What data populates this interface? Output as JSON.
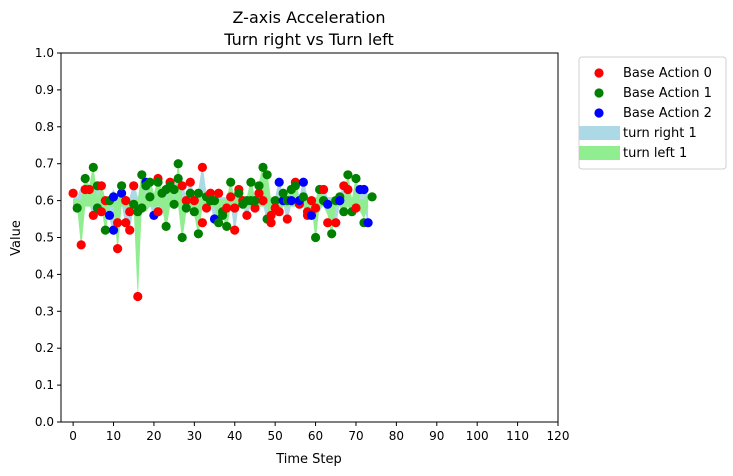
{
  "chart_data": {
    "type": "scatter",
    "title": "Z-axis Acceleration",
    "subtitle": "Turn right vs Turn left",
    "xlabel": "Time Step",
    "ylabel": "Value",
    "xlim": [
      -3,
      120
    ],
    "ylim": [
      0,
      1
    ],
    "x_ticks": [
      0,
      10,
      20,
      30,
      40,
      50,
      60,
      70,
      80,
      90,
      100,
      110,
      120
    ],
    "y_ticks": [
      0.0,
      0.1,
      0.2,
      0.3,
      0.4,
      0.5,
      0.6,
      0.7,
      0.8,
      0.9,
      1.0
    ],
    "x_tick_labels": [
      "0",
      "10",
      "20",
      "30",
      "40",
      "50",
      "60",
      "70",
      "80",
      "90",
      "100",
      "110",
      "120"
    ],
    "y_tick_labels": [
      "0.0",
      "0.1",
      "0.2",
      "0.3",
      "0.4",
      "0.5",
      "0.6",
      "0.7",
      "0.8",
      "0.9",
      "1.0"
    ],
    "grid": false,
    "legend_position": "outside-top-right",
    "legend": [
      {
        "label": "Base Action 0",
        "kind": "dot",
        "color": "#ff0000"
      },
      {
        "label": "Base Action 1",
        "kind": "dot",
        "color": "#008000"
      },
      {
        "label": "Base Action 2",
        "kind": "dot",
        "color": "#0000ff"
      },
      {
        "label": "turn right 1",
        "kind": "band",
        "color": "#add8e6"
      },
      {
        "label": "turn left 1",
        "kind": "band",
        "color": "#90ee90"
      }
    ],
    "series": [
      {
        "name": "turn right 1",
        "values": [
          [
            0,
            0.62
          ],
          [
            1,
            0.58
          ],
          [
            2,
            0.63
          ],
          [
            3,
            0.63
          ],
          [
            4,
            0.63
          ],
          [
            5,
            0.56
          ],
          [
            6,
            0.64
          ],
          [
            7,
            0.57
          ],
          [
            8,
            0.6
          ],
          [
            9,
            0.56
          ],
          [
            10,
            0.52
          ],
          [
            11,
            0.61
          ],
          [
            12,
            0.62
          ],
          [
            13,
            0.54
          ],
          [
            14,
            0.52
          ],
          [
            15,
            0.64
          ],
          [
            16,
            0.57
          ],
          [
            17,
            0.65
          ],
          [
            18,
            0.65
          ],
          [
            19,
            0.61
          ],
          [
            20,
            0.56
          ],
          [
            21,
            0.66
          ],
          [
            22,
            0.57
          ],
          [
            23,
            0.63
          ],
          [
            24,
            0.65
          ],
          [
            25,
            0.63
          ],
          [
            26,
            0.66
          ],
          [
            27,
            0.64
          ],
          [
            28,
            0.6
          ],
          [
            29,
            0.65
          ],
          [
            30,
            0.6
          ],
          [
            31,
            0.62
          ],
          [
            32,
            0.69
          ],
          [
            33,
            0.61
          ],
          [
            34,
            0.62
          ],
          [
            35,
            0.55
          ],
          [
            36,
            0.62
          ],
          [
            37,
            0.56
          ],
          [
            38,
            0.58
          ],
          [
            39,
            0.61
          ],
          [
            40,
            0.52
          ],
          [
            41,
            0.63
          ],
          [
            42,
            0.6
          ],
          [
            43,
            0.56
          ],
          [
            44,
            0.6
          ],
          [
            45,
            0.58
          ],
          [
            46,
            0.62
          ],
          [
            47,
            0.6
          ],
          [
            48,
            0.55
          ],
          [
            49,
            0.56
          ],
          [
            50,
            0.58
          ],
          [
            51,
            0.65
          ],
          [
            52,
            0.6
          ],
          [
            53,
            0.55
          ],
          [
            54,
            0.6
          ],
          [
            55,
            0.65
          ],
          [
            56,
            0.6
          ],
          [
            57,
            0.65
          ],
          [
            58,
            0.57
          ],
          [
            59,
            0.58
          ],
          [
            60,
            0.56
          ],
          [
            61,
            0.58
          ],
          [
            62,
            0.63
          ],
          [
            63,
            0.59
          ],
          [
            64,
            0.54
          ],
          [
            65,
            0.54
          ],
          [
            66,
            0.6
          ],
          [
            67,
            0.64
          ],
          [
            68,
            0.63
          ],
          [
            69,
            0.57
          ],
          [
            70,
            0.58
          ],
          [
            71,
            0.63
          ],
          [
            72,
            0.63
          ],
          [
            73,
            0.54
          ]
        ]
      },
      {
        "name": "turn left 1",
        "values": [
          [
            0,
            0.58
          ],
          [
            1,
            0.59
          ],
          [
            2,
            0.48
          ],
          [
            3,
            0.66
          ],
          [
            4,
            0.63
          ],
          [
            5,
            0.69
          ],
          [
            6,
            0.58
          ],
          [
            7,
            0.64
          ],
          [
            8,
            0.52
          ],
          [
            9,
            0.6
          ],
          [
            10,
            0.62
          ],
          [
            11,
            0.47
          ],
          [
            12,
            0.64
          ],
          [
            13,
            0.6
          ],
          [
            14,
            0.57
          ],
          [
            15,
            0.59
          ],
          [
            16,
            0.34
          ],
          [
            17,
            0.67
          ],
          [
            18,
            0.58
          ],
          [
            19,
            0.65
          ],
          [
            20,
            0.61
          ],
          [
            21,
            0.65
          ],
          [
            22,
            0.62
          ],
          [
            23,
            0.53
          ],
          [
            24,
            0.64
          ],
          [
            25,
            0.59
          ],
          [
            26,
            0.7
          ],
          [
            27,
            0.5
          ],
          [
            28,
            0.58
          ],
          [
            29,
            0.62
          ],
          [
            30,
            0.57
          ],
          [
            31,
            0.51
          ],
          [
            32,
            0.6
          ],
          [
            33,
            0.58
          ],
          [
            34,
            0.6
          ],
          [
            35,
            0.6
          ],
          [
            36,
            0.54
          ],
          [
            37,
            0.57
          ],
          [
            38,
            0.53
          ],
          [
            39,
            0.65
          ],
          [
            40,
            0.58
          ],
          [
            41,
            0.62
          ],
          [
            42,
            0.59
          ],
          [
            43,
            0.6
          ],
          [
            44,
            0.65
          ],
          [
            45,
            0.6
          ],
          [
            46,
            0.64
          ],
          [
            47,
            0.69
          ],
          [
            48,
            0.67
          ],
          [
            49,
            0.54
          ],
          [
            50,
            0.6
          ],
          [
            51,
            0.57
          ],
          [
            52,
            0.62
          ],
          [
            53,
            0.6
          ],
          [
            54,
            0.63
          ],
          [
            55,
            0.64
          ],
          [
            56,
            0.59
          ],
          [
            57,
            0.61
          ],
          [
            58,
            0.56
          ],
          [
            59,
            0.6
          ],
          [
            60,
            0.5
          ],
          [
            61,
            0.63
          ],
          [
            62,
            0.6
          ],
          [
            63,
            0.57
          ],
          [
            64,
            0.51
          ],
          [
            65,
            0.6
          ],
          [
            66,
            0.61
          ],
          [
            67,
            0.57
          ],
          [
            68,
            0.67
          ],
          [
            69,
            0.57
          ],
          [
            70,
            0.66
          ],
          [
            71,
            0.58
          ],
          [
            72,
            0.56
          ],
          [
            73,
            0.61
          ]
        ]
      }
    ],
    "points": [
      {
        "x": 0,
        "y": 0.62,
        "a": 0
      },
      {
        "x": 1,
        "y": 0.58,
        "a": 1
      },
      {
        "x": 2,
        "y": 0.48,
        "a": 0
      },
      {
        "x": 3,
        "y": 0.63,
        "a": 0
      },
      {
        "x": 3,
        "y": 0.66,
        "a": 1
      },
      {
        "x": 4,
        "y": 0.63,
        "a": 0
      },
      {
        "x": 5,
        "y": 0.56,
        "a": 0
      },
      {
        "x": 5,
        "y": 0.69,
        "a": 1
      },
      {
        "x": 6,
        "y": 0.58,
        "a": 1
      },
      {
        "x": 6,
        "y": 0.64,
        "a": 1
      },
      {
        "x": 7,
        "y": 0.57,
        "a": 0
      },
      {
        "x": 7,
        "y": 0.64,
        "a": 0
      },
      {
        "x": 8,
        "y": 0.6,
        "a": 0
      },
      {
        "x": 8,
        "y": 0.52,
        "a": 1
      },
      {
        "x": 9,
        "y": 0.56,
        "a": 2
      },
      {
        "x": 9,
        "y": 0.6,
        "a": 1
      },
      {
        "x": 10,
        "y": 0.61,
        "a": 2
      },
      {
        "x": 10,
        "y": 0.52,
        "a": 2
      },
      {
        "x": 11,
        "y": 0.47,
        "a": 0
      },
      {
        "x": 11,
        "y": 0.54,
        "a": 0
      },
      {
        "x": 12,
        "y": 0.62,
        "a": 2
      },
      {
        "x": 12,
        "y": 0.64,
        "a": 1
      },
      {
        "x": 13,
        "y": 0.54,
        "a": 0
      },
      {
        "x": 13,
        "y": 0.6,
        "a": 0
      },
      {
        "x": 14,
        "y": 0.52,
        "a": 0
      },
      {
        "x": 14,
        "y": 0.57,
        "a": 0
      },
      {
        "x": 15,
        "y": 0.64,
        "a": 0
      },
      {
        "x": 15,
        "y": 0.59,
        "a": 1
      },
      {
        "x": 16,
        "y": 0.34,
        "a": 0
      },
      {
        "x": 16,
        "y": 0.57,
        "a": 1
      },
      {
        "x": 17,
        "y": 0.67,
        "a": 1
      },
      {
        "x": 17,
        "y": 0.58,
        "a": 1
      },
      {
        "x": 18,
        "y": 0.65,
        "a": 2
      },
      {
        "x": 18,
        "y": 0.64,
        "a": 1
      },
      {
        "x": 19,
        "y": 0.65,
        "a": 1
      },
      {
        "x": 19,
        "y": 0.61,
        "a": 1
      },
      {
        "x": 20,
        "y": 0.56,
        "a": 2
      },
      {
        "x": 21,
        "y": 0.66,
        "a": 0
      },
      {
        "x": 21,
        "y": 0.65,
        "a": 1
      },
      {
        "x": 21,
        "y": 0.57,
        "a": 0
      },
      {
        "x": 22,
        "y": 0.62,
        "a": 1
      },
      {
        "x": 23,
        "y": 0.53,
        "a": 1
      },
      {
        "x": 23,
        "y": 0.63,
        "a": 1
      },
      {
        "x": 24,
        "y": 0.65,
        "a": 0
      },
      {
        "x": 24,
        "y": 0.64,
        "a": 1
      },
      {
        "x": 25,
        "y": 0.59,
        "a": 1
      },
      {
        "x": 25,
        "y": 0.63,
        "a": 1
      },
      {
        "x": 26,
        "y": 0.7,
        "a": 1
      },
      {
        "x": 26,
        "y": 0.66,
        "a": 1
      },
      {
        "x": 27,
        "y": 0.5,
        "a": 1
      },
      {
        "x": 27,
        "y": 0.64,
        "a": 0
      },
      {
        "x": 28,
        "y": 0.6,
        "a": 0
      },
      {
        "x": 28,
        "y": 0.58,
        "a": 1
      },
      {
        "x": 29,
        "y": 0.65,
        "a": 0
      },
      {
        "x": 29,
        "y": 0.62,
        "a": 1
      },
      {
        "x": 30,
        "y": 0.6,
        "a": 0
      },
      {
        "x": 30,
        "y": 0.57,
        "a": 1
      },
      {
        "x": 31,
        "y": 0.51,
        "a": 1
      },
      {
        "x": 31,
        "y": 0.62,
        "a": 1
      },
      {
        "x": 32,
        "y": 0.69,
        "a": 0
      },
      {
        "x": 32,
        "y": 0.54,
        "a": 0
      },
      {
        "x": 33,
        "y": 0.61,
        "a": 1
      },
      {
        "x": 33,
        "y": 0.58,
        "a": 0
      },
      {
        "x": 34,
        "y": 0.62,
        "a": 0
      },
      {
        "x": 34,
        "y": 0.6,
        "a": 1
      },
      {
        "x": 35,
        "y": 0.55,
        "a": 2
      },
      {
        "x": 35,
        "y": 0.6,
        "a": 1
      },
      {
        "x": 36,
        "y": 0.62,
        "a": 0
      },
      {
        "x": 36,
        "y": 0.54,
        "a": 1
      },
      {
        "x": 37,
        "y": 0.56,
        "a": 1
      },
      {
        "x": 37,
        "y": 0.57,
        "a": 1
      },
      {
        "x": 38,
        "y": 0.58,
        "a": 0
      },
      {
        "x": 38,
        "y": 0.53,
        "a": 1
      },
      {
        "x": 39,
        "y": 0.65,
        "a": 1
      },
      {
        "x": 39,
        "y": 0.61,
        "a": 0
      },
      {
        "x": 40,
        "y": 0.52,
        "a": 0
      },
      {
        "x": 40,
        "y": 0.58,
        "a": 0
      },
      {
        "x": 41,
        "y": 0.63,
        "a": 0
      },
      {
        "x": 41,
        "y": 0.62,
        "a": 1
      },
      {
        "x": 42,
        "y": 0.6,
        "a": 0
      },
      {
        "x": 42,
        "y": 0.59,
        "a": 1
      },
      {
        "x": 43,
        "y": 0.56,
        "a": 0
      },
      {
        "x": 43,
        "y": 0.6,
        "a": 1
      },
      {
        "x": 44,
        "y": 0.65,
        "a": 1
      },
      {
        "x": 44,
        "y": 0.6,
        "a": 1
      },
      {
        "x": 45,
        "y": 0.58,
        "a": 0
      },
      {
        "x": 45,
        "y": 0.6,
        "a": 1
      },
      {
        "x": 46,
        "y": 0.62,
        "a": 0
      },
      {
        "x": 46,
        "y": 0.64,
        "a": 1
      },
      {
        "x": 47,
        "y": 0.69,
        "a": 1
      },
      {
        "x": 47,
        "y": 0.6,
        "a": 0
      },
      {
        "x": 48,
        "y": 0.67,
        "a": 1
      },
      {
        "x": 48,
        "y": 0.55,
        "a": 1
      },
      {
        "x": 49,
        "y": 0.54,
        "a": 0
      },
      {
        "x": 49,
        "y": 0.56,
        "a": 0
      },
      {
        "x": 50,
        "y": 0.6,
        "a": 1
      },
      {
        "x": 50,
        "y": 0.58,
        "a": 0
      },
      {
        "x": 51,
        "y": 0.65,
        "a": 2
      },
      {
        "x": 51,
        "y": 0.57,
        "a": 0
      },
      {
        "x": 52,
        "y": 0.6,
        "a": 2
      },
      {
        "x": 52,
        "y": 0.62,
        "a": 1
      },
      {
        "x": 53,
        "y": 0.55,
        "a": 0
      },
      {
        "x": 53,
        "y": 0.6,
        "a": 1
      },
      {
        "x": 54,
        "y": 0.63,
        "a": 1
      },
      {
        "x": 54,
        "y": 0.6,
        "a": 2
      },
      {
        "x": 55,
        "y": 0.65,
        "a": 0
      },
      {
        "x": 55,
        "y": 0.64,
        "a": 1
      },
      {
        "x": 56,
        "y": 0.59,
        "a": 0
      },
      {
        "x": 56,
        "y": 0.6,
        "a": 2
      },
      {
        "x": 57,
        "y": 0.65,
        "a": 2
      },
      {
        "x": 57,
        "y": 0.61,
        "a": 1
      },
      {
        "x": 58,
        "y": 0.56,
        "a": 0
      },
      {
        "x": 58,
        "y": 0.57,
        "a": 0
      },
      {
        "x": 59,
        "y": 0.6,
        "a": 0
      },
      {
        "x": 59,
        "y": 0.56,
        "a": 2
      },
      {
        "x": 60,
        "y": 0.5,
        "a": 1
      },
      {
        "x": 60,
        "y": 0.58,
        "a": 0
      },
      {
        "x": 61,
        "y": 0.63,
        "a": 1
      },
      {
        "x": 62,
        "y": 0.63,
        "a": 0
      },
      {
        "x": 62,
        "y": 0.6,
        "a": 1
      },
      {
        "x": 63,
        "y": 0.59,
        "a": 2
      },
      {
        "x": 63,
        "y": 0.54,
        "a": 0
      },
      {
        "x": 64,
        "y": 0.51,
        "a": 1
      },
      {
        "x": 65,
        "y": 0.54,
        "a": 0
      },
      {
        "x": 65,
        "y": 0.6,
        "a": 1
      },
      {
        "x": 66,
        "y": 0.61,
        "a": 1
      },
      {
        "x": 66,
        "y": 0.6,
        "a": 2
      },
      {
        "x": 67,
        "y": 0.64,
        "a": 0
      },
      {
        "x": 67,
        "y": 0.57,
        "a": 1
      },
      {
        "x": 68,
        "y": 0.63,
        "a": 0
      },
      {
        "x": 68,
        "y": 0.67,
        "a": 1
      },
      {
        "x": 69,
        "y": 0.57,
        "a": 1
      },
      {
        "x": 70,
        "y": 0.58,
        "a": 0
      },
      {
        "x": 70,
        "y": 0.66,
        "a": 1
      },
      {
        "x": 71,
        "y": 0.63,
        "a": 2
      },
      {
        "x": 72,
        "y": 0.63,
        "a": 2
      },
      {
        "x": 72,
        "y": 0.54,
        "a": 1
      },
      {
        "x": 73,
        "y": 0.54,
        "a": 2
      },
      {
        "x": 74,
        "y": 0.61,
        "a": 1
      }
    ],
    "point_colors": [
      "#ff0000",
      "#008000",
      "#0000ff"
    ]
  }
}
